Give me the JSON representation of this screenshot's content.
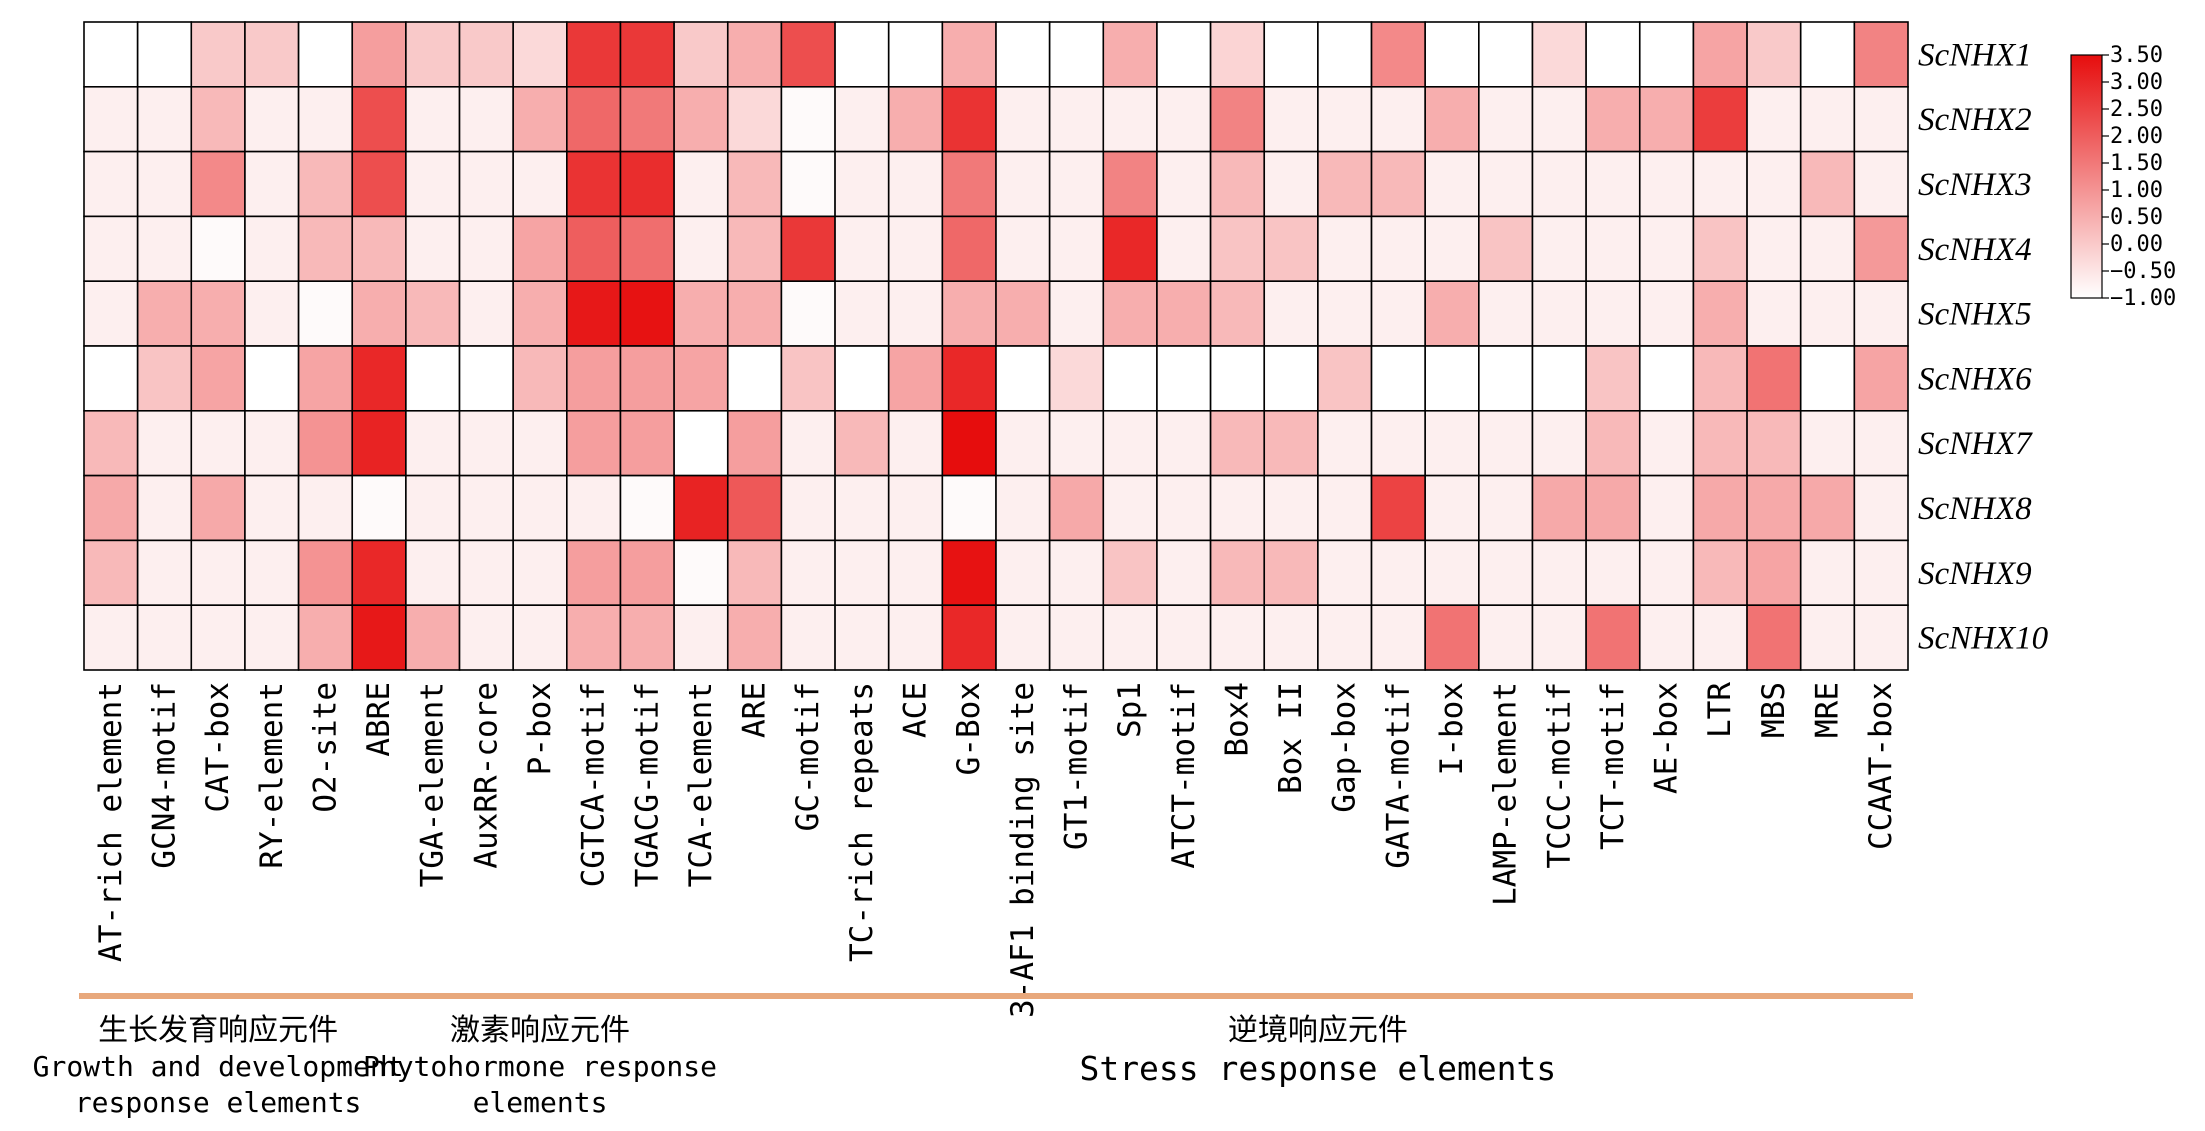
{
  "chart_data": {
    "type": "heatmap",
    "title": "",
    "columns": [
      "AT-rich element",
      "GCN4-motif",
      "CAT-box",
      "RY-element",
      "O2-site",
      "ABRE",
      "TGA-element",
      "AuxRR-core",
      "P-box",
      "CGTCA-motif",
      "TGACG-motif",
      "TCA-element",
      "ARE",
      "GC-motif",
      "TC-rich repeats",
      "ACE",
      "G-Box",
      "3-AF1 binding site",
      "GT1-motif",
      "Sp1",
      "ATCT-motif",
      "Box4",
      "Box II",
      "Gap-box",
      "GATA-motif",
      "I-box",
      "LAMP-element",
      "TCCC-motif",
      "TCT-motif",
      "AE-box",
      "LTR",
      "MBS",
      "MRE",
      "CCAAT-box"
    ],
    "rows": [
      "ScNHX1",
      "ScNHX2",
      "ScNHX3",
      "ScNHX4",
      "ScNHX5",
      "ScNHX6",
      "ScNHX7",
      "ScNHX8",
      "ScNHX9",
      "ScNHX10"
    ],
    "values": [
      [
        -1.0,
        -1.0,
        0.0,
        0.0,
        -1.0,
        0.8,
        0.0,
        0.0,
        -0.3,
        2.7,
        2.7,
        0.0,
        0.5,
        2.3,
        -1.0,
        -1.0,
        0.5,
        -1.0,
        -1.0,
        0.5,
        -1.0,
        -0.2,
        -1.0,
        -1.0,
        1.2,
        -1.0,
        -1.0,
        -0.3,
        -1.0,
        -1.0,
        0.7,
        0.0,
        -1.0,
        1.3
      ],
      [
        -0.7,
        -0.7,
        0.3,
        -0.7,
        -0.7,
        2.3,
        -0.7,
        -0.7,
        0.5,
        1.8,
        1.5,
        0.5,
        -0.3,
        -0.9,
        -0.7,
        0.5,
        2.8,
        -0.7,
        -0.7,
        -0.7,
        -0.7,
        1.3,
        -0.7,
        -0.7,
        -0.7,
        0.5,
        -0.7,
        -0.7,
        0.5,
        0.5,
        2.6,
        -0.7,
        -0.7,
        -0.7
      ],
      [
        -0.7,
        -0.7,
        1.2,
        -0.7,
        0.3,
        2.3,
        -0.7,
        -0.7,
        -0.7,
        2.8,
        2.9,
        -0.7,
        0.3,
        -0.9,
        -0.7,
        -0.7,
        1.5,
        -0.7,
        -0.7,
        1.3,
        -0.7,
        0.3,
        -0.7,
        0.3,
        0.3,
        -0.7,
        -0.7,
        -0.7,
        -0.7,
        -0.7,
        -0.7,
        -0.7,
        0.3,
        -0.7
      ],
      [
        -0.7,
        -0.7,
        -0.9,
        -0.7,
        0.3,
        0.3,
        -0.7,
        -0.7,
        0.7,
        2.0,
        1.7,
        -0.7,
        0.3,
        2.7,
        -0.7,
        -0.7,
        1.8,
        -0.7,
        -0.7,
        3.0,
        -0.7,
        0.1,
        0.1,
        -0.7,
        -0.7,
        -0.7,
        0.1,
        -0.7,
        -0.7,
        -0.7,
        0.1,
        -0.7,
        -0.7,
        0.9
      ],
      [
        -0.7,
        0.5,
        0.5,
        -0.7,
        -0.9,
        0.5,
        0.3,
        -0.7,
        0.5,
        3.3,
        3.4,
        0.5,
        0.5,
        -0.9,
        -0.7,
        -0.7,
        0.5,
        0.5,
        -0.7,
        0.5,
        0.5,
        0.3,
        -0.7,
        -0.7,
        -0.7,
        0.5,
        -0.7,
        -0.7,
        -0.7,
        -0.7,
        0.5,
        -0.7,
        -0.7,
        -0.7
      ],
      [
        -1.0,
        0.1,
        0.7,
        -1.0,
        0.7,
        3.0,
        -1.0,
        -1.0,
        0.3,
        0.8,
        0.8,
        0.7,
        -1.0,
        0.1,
        -1.0,
        0.7,
        3.0,
        -1.0,
        -0.3,
        -1.0,
        -1.0,
        -1.0,
        -1.0,
        0.1,
        -1.0,
        -1.0,
        -1.0,
        -1.0,
        0.1,
        -1.0,
        0.3,
        1.6,
        -1.0,
        0.7
      ],
      [
        0.3,
        -0.7,
        -0.7,
        -0.7,
        1.0,
        3.1,
        -0.7,
        -0.7,
        -0.7,
        0.8,
        0.8,
        -1.0,
        0.8,
        -0.7,
        0.3,
        -0.7,
        3.5,
        -0.7,
        -0.7,
        -0.7,
        -0.7,
        0.3,
        0.3,
        -0.7,
        -0.7,
        -0.7,
        -0.7,
        -0.7,
        0.3,
        -0.7,
        0.3,
        0.3,
        -0.7,
        -0.7
      ],
      [
        0.6,
        -0.7,
        0.6,
        -0.7,
        -0.7,
        -0.9,
        -0.7,
        -0.7,
        -0.7,
        -0.7,
        -0.9,
        3.1,
        2.1,
        -0.7,
        -0.7,
        -0.7,
        -0.9,
        -0.7,
        0.6,
        -0.7,
        -0.7,
        -0.7,
        -0.7,
        -0.7,
        2.5,
        -0.7,
        -0.7,
        0.6,
        0.6,
        -0.7,
        0.6,
        0.6,
        0.6,
        -0.7
      ],
      [
        0.3,
        -0.7,
        -0.7,
        -0.7,
        1.0,
        3.0,
        -0.7,
        -0.7,
        -0.7,
        0.8,
        0.8,
        -0.9,
        0.3,
        -0.7,
        -0.7,
        -0.7,
        3.4,
        -0.7,
        -0.7,
        0.1,
        -0.7,
        0.3,
        0.3,
        -0.7,
        -0.7,
        -0.7,
        -0.7,
        -0.7,
        -0.7,
        -0.7,
        0.3,
        0.7,
        -0.7,
        -0.7
      ],
      [
        -0.7,
        -0.7,
        -0.7,
        -0.7,
        0.5,
        3.3,
        0.5,
        -0.7,
        -0.7,
        0.5,
        0.5,
        -0.7,
        0.5,
        -0.7,
        -0.7,
        -0.7,
        3.0,
        -0.7,
        -0.7,
        -0.7,
        -0.7,
        -0.7,
        -0.7,
        -0.7,
        -0.7,
        1.6,
        -0.7,
        -0.7,
        1.6,
        -0.7,
        -0.7,
        1.6,
        -0.7,
        -0.7
      ]
    ],
    "colorbar": {
      "min": -1.0,
      "max": 3.5,
      "colors": [
        "#ffffff",
        "#e60d0d"
      ],
      "ticks": [
        "3.50",
        "3.00",
        "2.50",
        "2.00",
        "1.50",
        "1.00",
        "0.50",
        "0.00",
        "−0.50",
        "−1.00"
      ],
      "tick_values": [
        3.5,
        3.0,
        2.5,
        2.0,
        1.5,
        1.0,
        0.5,
        0.0,
        -0.5,
        -1.0
      ]
    },
    "groups": [
      {
        "cn": "生长发育响应元件",
        "en": [
          "Growth and development",
          "response elements"
        ],
        "start": 0,
        "end": 4
      },
      {
        "cn": "激素响应元件",
        "en": [
          "Phytohormone response",
          "elements"
        ],
        "start": 5,
        "end": 11
      },
      {
        "cn": "逆境响应元件",
        "en": [
          "Stress response elements"
        ],
        "start": 12,
        "end": 33
      }
    ],
    "group_bar_color": "#e8a87c"
  }
}
